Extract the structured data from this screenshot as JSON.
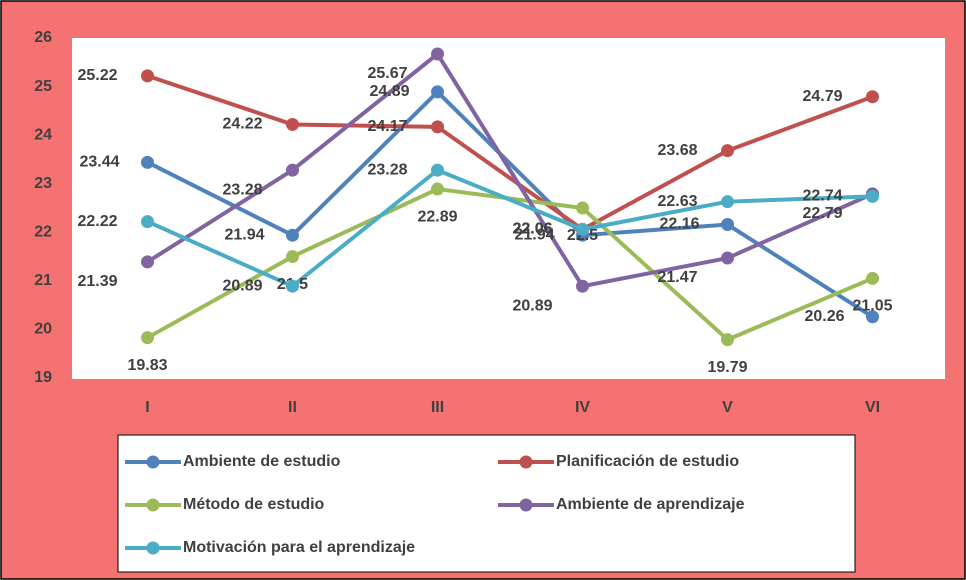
{
  "chart_data": {
    "type": "line",
    "categories": [
      "I",
      "II",
      "III",
      "IV",
      "V",
      "VI"
    ],
    "series": [
      {
        "name": "Ambiente de estudio",
        "color": "#4f81bd",
        "values": [
          23.44,
          21.94,
          24.89,
          21.94,
          22.16,
          20.26
        ]
      },
      {
        "name": "Planificación de estudio",
        "color": "#c0504d",
        "values": [
          25.22,
          24.22,
          24.17,
          22.06,
          23.68,
          24.79
        ]
      },
      {
        "name": "Método de estudio",
        "color": "#9bbb59",
        "values": [
          19.83,
          21.5,
          22.89,
          22.5,
          19.79,
          21.05
        ]
      },
      {
        "name": "Ambiente de aprendizaje",
        "color": "#8064a2",
        "values": [
          21.39,
          23.28,
          25.67,
          20.89,
          21.47,
          22.79
        ]
      },
      {
        "name": "Motivación para el aprendizaje",
        "color": "#4bacc6",
        "values": [
          22.22,
          20.89,
          23.28,
          22.06,
          22.63,
          22.74
        ]
      }
    ],
    "ylim": [
      19,
      26
    ],
    "yticks": [
      19,
      20,
      21,
      22,
      23,
      24,
      25,
      26
    ],
    "grid": false,
    "legend": "bottom"
  }
}
